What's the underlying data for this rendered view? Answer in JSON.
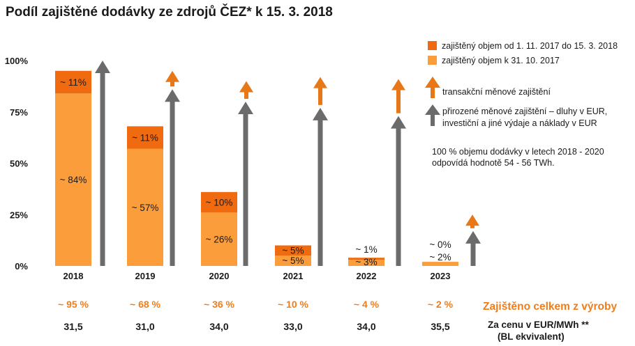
{
  "title": "Podíl zajištěné dodávky ze zdrojů ČEZ* k 15. 3. 2018",
  "colors": {
    "dark_orange": "#f06a0f",
    "light_orange": "#fb9d3a",
    "arrow_gray": "#6b6b6b",
    "arrow_orange": "#e87817",
    "accent_text": "#f07d1a"
  },
  "legend": {
    "dark_label": "zajištěný objem od 1. 11. 2017 do 15. 3. 2018",
    "light_label": "zajištěný objem k 31. 10. 2017",
    "orange_arrow_label": "transakční měnové zajištění",
    "gray_arrow_label_1": "přirozené měnové zajištění – dluhy v EUR,",
    "gray_arrow_label_2": "investiční a jiné výdaje a náklady v EUR",
    "note_1": "100 % objemu dodávky v letech 2018 - 2020",
    "note_2": "odpovídá hodnotě 54 - 56 TWh."
  },
  "rows": {
    "total_heading": "Zajištěno celkem z výroby",
    "price_heading_1": "Za cenu v EUR/MWh **",
    "price_heading_2": "(BL ekvivalent)"
  },
  "chart_data": {
    "type": "bar",
    "stacked": true,
    "title": "Podíl zajištěné dodávky ze zdrojů ČEZ* k 15. 3. 2018",
    "categories": [
      "2018",
      "2019",
      "2020",
      "2021",
      "2022",
      "2023"
    ],
    "series": [
      {
        "name": "zajištěný objem k 31. 10. 2017",
        "values": [
          84,
          57,
          26,
          5,
          3,
          2
        ],
        "labels": [
          "~ 84%",
          "~ 57%",
          "~ 26%",
          "~ 5%",
          "~ 3%",
          "~ 2%"
        ]
      },
      {
        "name": "zajištěný objem od 1. 11. 2017 do 15. 3. 2018",
        "values": [
          11,
          11,
          10,
          5,
          1,
          0
        ],
        "labels": [
          "~ 11%",
          "~ 11%",
          "~ 10%",
          "~ 5%",
          "~ 1%",
          "~ 0%"
        ]
      }
    ],
    "hedging_arrows": {
      "gray_natural_hedge_top": [
        100,
        86,
        80,
        77,
        73,
        17
      ],
      "orange_transactional_hedge_top": [
        0,
        95,
        90,
        92,
        91,
        25
      ]
    },
    "ylim": [
      0,
      100
    ],
    "yticks": [
      "0%",
      "25%",
      "50%",
      "75%",
      "100%"
    ],
    "totals": [
      "~ 95 %",
      "~ 68 %",
      "~ 36 %",
      "~ 10 %",
      "~ 4 %",
      "~ 2 %"
    ],
    "prices": [
      "31,5",
      "31,0",
      "34,0",
      "33,0",
      "34,0",
      "35,5"
    ],
    "grid": false,
    "legend_position": "top-right"
  }
}
